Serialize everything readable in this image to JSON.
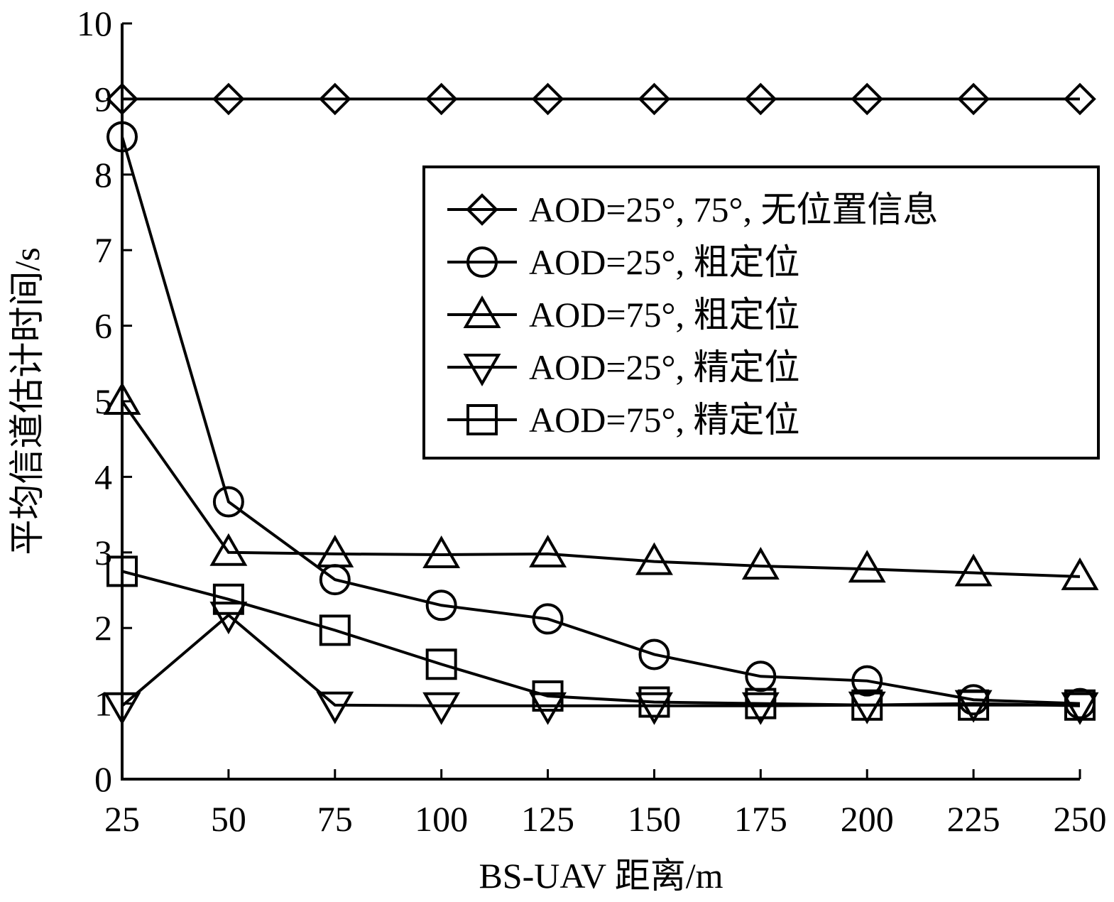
{
  "chart_data": {
    "type": "line",
    "title": "",
    "xlabel": "BS-UAV 距离/m",
    "ylabel": "平均信道估计时间/s",
    "x": [
      25,
      50,
      75,
      100,
      125,
      150,
      175,
      200,
      225,
      250
    ],
    "xlim": [
      25,
      250
    ],
    "ylim": [
      0,
      10
    ],
    "yticks": [
      0,
      1,
      2,
      3,
      4,
      5,
      6,
      7,
      8,
      9,
      10
    ],
    "grid": false,
    "legend_position": "upper-right",
    "line_color": "#000000",
    "series": [
      {
        "name": "AOD=25°, 75°, 无位置信息",
        "marker": "diamond",
        "values": [
          9,
          9,
          9,
          9,
          9,
          9,
          9,
          9,
          9,
          9
        ]
      },
      {
        "name": "AOD=25°, 粗定位",
        "marker": "circle",
        "values": [
          8.5,
          3.67,
          2.64,
          2.3,
          2.12,
          1.65,
          1.36,
          1.3,
          1.05,
          1.0
        ]
      },
      {
        "name": "AOD=75°, 粗定位",
        "marker": "triangle-up",
        "values": [
          5.0,
          3.0,
          2.98,
          2.97,
          2.98,
          2.88,
          2.82,
          2.78,
          2.73,
          2.68
        ]
      },
      {
        "name": "AOD=25°, 精定位",
        "marker": "triangle-down",
        "values": [
          0.97,
          2.17,
          0.98,
          0.97,
          0.97,
          0.97,
          0.97,
          0.98,
          1.0,
          0.97
        ]
      },
      {
        "name": "AOD=75°, 精定位",
        "marker": "square",
        "values": [
          2.75,
          2.38,
          1.97,
          1.52,
          1.1,
          1.02,
          1.0,
          0.98,
          0.98,
          0.98
        ]
      }
    ]
  }
}
